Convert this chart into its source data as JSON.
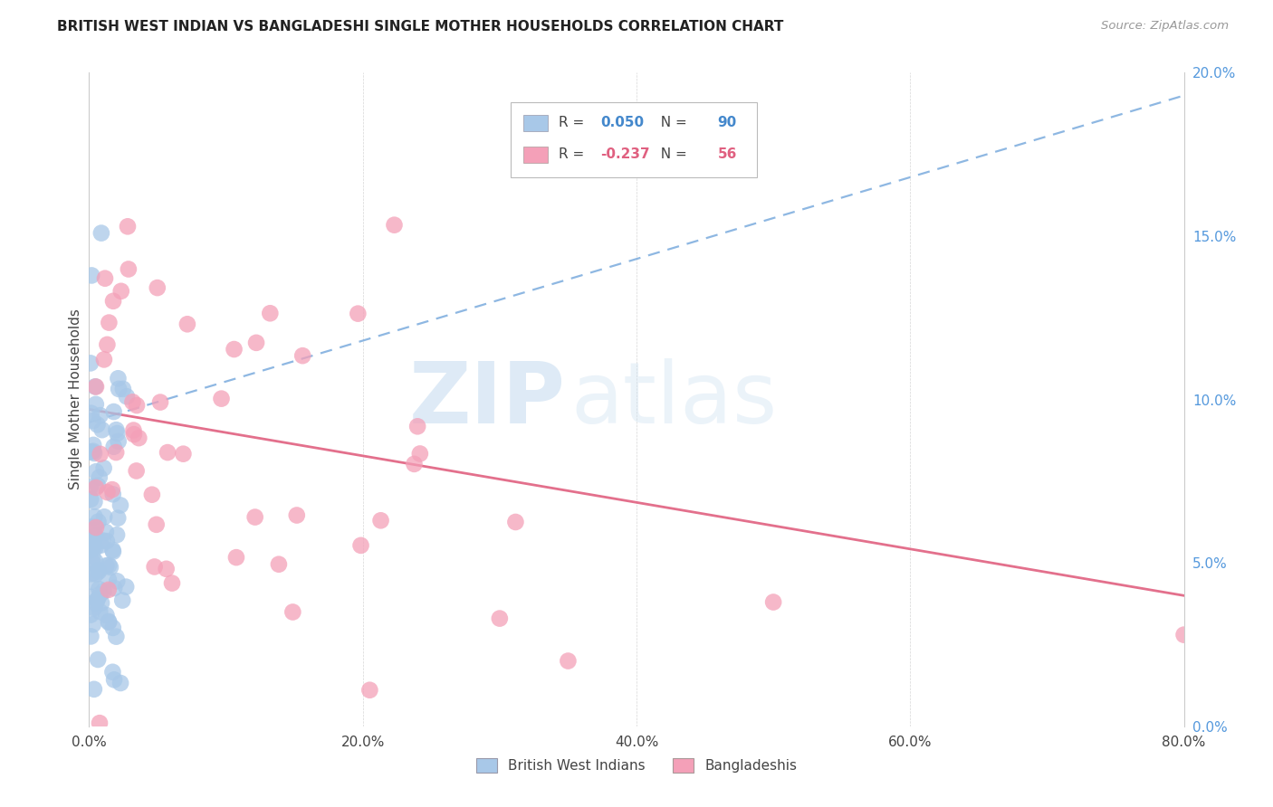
{
  "title": "BRITISH WEST INDIAN VS BANGLADESHI SINGLE MOTHER HOUSEHOLDS CORRELATION CHART",
  "source": "Source: ZipAtlas.com",
  "ylabel": "Single Mother Households",
  "series1_label": "British West Indians",
  "series2_label": "Bangladeshis",
  "R1": 0.05,
  "N1": 90,
  "R2": -0.237,
  "N2": 56,
  "color1": "#a8c8e8",
  "color1_line": "#6699cc",
  "color1_dark": "#7aabdd",
  "color2": "#f4a0b8",
  "color2_line": "#e06080",
  "watermark_zip": "ZIP",
  "watermark_atlas": "atlas",
  "xlim": [
    0.0,
    0.8
  ],
  "ylim": [
    0.0,
    0.2
  ],
  "x_ticks": [
    0.0,
    0.2,
    0.4,
    0.6,
    0.8
  ],
  "y_ticks": [
    0.0,
    0.05,
    0.1,
    0.15,
    0.2
  ],
  "blue_line_start_y": 0.093,
  "blue_line_end_y": 0.193,
  "pink_line_start_y": 0.097,
  "pink_line_end_y": 0.04
}
